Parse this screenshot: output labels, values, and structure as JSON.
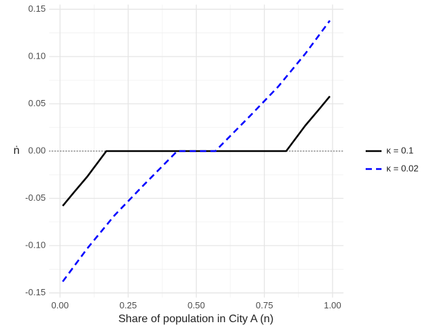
{
  "chart_data": {
    "type": "line",
    "x_label": "Share of population in City A (n)",
    "y_label": "ṅ",
    "xlim": [
      -0.04,
      1.04
    ],
    "ylim": [
      -0.155,
      0.155
    ],
    "xticks": [
      {
        "value": 0,
        "label": "0.00"
      },
      0.25,
      {
        "value": 0.5,
        "label": "0.50"
      },
      0.75,
      {
        "value": 1,
        "label": "1.00"
      }
    ],
    "yticks": [
      0.15,
      {
        "value": 0.1,
        "label": "0.10"
      },
      0.05,
      {
        "value": 0,
        "label": "0.00"
      },
      -0.05,
      {
        "value": -0.1,
        "label": "-0.10"
      },
      -0.15
    ],
    "grid": true,
    "legend": "right",
    "series": [
      {
        "name": "κ = 0.1",
        "color": "#000000",
        "dash": false,
        "x": [
          0.01,
          0.05,
          0.1,
          0.17,
          0.3,
          0.5,
          0.7,
          0.83,
          0.9,
          0.95,
          0.99
        ],
        "values": [
          -0.058,
          -0.044,
          -0.027,
          0,
          0,
          0,
          0,
          0,
          0.027,
          0.044,
          0.058
        ]
      },
      {
        "name": "κ = 0.02",
        "color": "#0000ff",
        "dash": true,
        "x": [
          0.01,
          0.1,
          0.2,
          0.3,
          0.43,
          0.5,
          0.57,
          0.7,
          0.8,
          0.9,
          0.99
        ],
        "values": [
          -0.138,
          -0.103,
          -0.068,
          -0.038,
          0,
          0,
          0,
          0.038,
          0.068,
          0.103,
          0.138
        ]
      }
    ]
  }
}
